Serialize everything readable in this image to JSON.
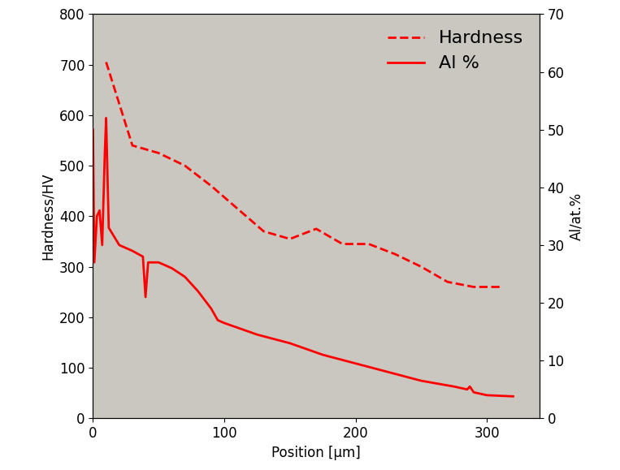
{
  "chart_data": {
    "type": "line",
    "x_label": "Position [μm]",
    "y_label": "Hardness/HV",
    "y2_label": "Al/at.%",
    "xlim": [
      0,
      340
    ],
    "xticks": [
      0,
      100,
      200,
      300
    ],
    "ylim": [
      0,
      800
    ],
    "yticks": [
      0,
      100,
      200,
      300,
      400,
      500,
      600,
      700,
      800
    ],
    "y2lim": [
      0,
      70
    ],
    "y2ticks": [
      0,
      10,
      20,
      30,
      40,
      50,
      60,
      70
    ],
    "legend": "upper right",
    "grid": false,
    "series": [
      {
        "name": "Hardness",
        "color": "#ff0000",
        "line_style": "dashed",
        "axis": "y",
        "x": [
          10,
          30,
          50,
          70,
          90,
          110,
          130,
          150,
          170,
          190,
          210,
          230,
          250,
          270,
          290,
          310
        ],
        "values": [
          705,
          540,
          525,
          500,
          460,
          415,
          370,
          355,
          375,
          345,
          345,
          325,
          300,
          270,
          260,
          260
        ]
      },
      {
        "name": "Al %",
        "color": "#ff0000",
        "line_style": "solid",
        "axis": "y2",
        "x": [
          0,
          1,
          3,
          5,
          7,
          9,
          10,
          12,
          20,
          30,
          38,
          40,
          42,
          50,
          60,
          70,
          80,
          90,
          95,
          100,
          125,
          150,
          175,
          200,
          225,
          250,
          275,
          285,
          287,
          290,
          300,
          320
        ],
        "values": [
          50,
          27,
          35,
          36,
          30,
          46,
          52,
          33,
          30,
          29,
          28,
          21,
          27,
          27,
          26,
          24.5,
          22,
          19,
          17,
          16.5,
          14.5,
          13,
          11,
          9.5,
          8,
          6.5,
          5.5,
          5,
          5.5,
          4.5,
          4,
          3.8
        ]
      }
    ]
  }
}
